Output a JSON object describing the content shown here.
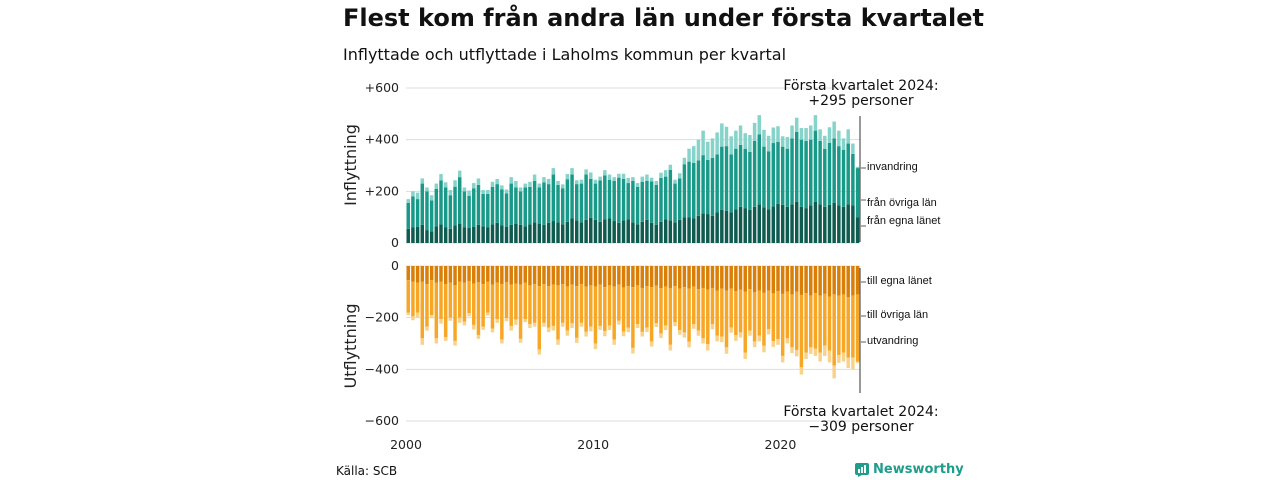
{
  "header": {
    "title": "Flest kom från andra län under första kvartalet",
    "subtitle": "Inflyttade och utflyttade i Laholms kommun per kvartal"
  },
  "footer": {
    "source": "Källa: SCB",
    "brand": "Newsworthy"
  },
  "colors": {
    "in_own": "#0f5b50",
    "in_other": "#199a88",
    "in_abroad": "#86d3c9",
    "out_own": "#d97e07",
    "out_other": "#f7a625",
    "out_abroad": "#f9d28a",
    "grid": "#dddddd"
  },
  "chart_data": [
    {
      "type": "bar",
      "stacked": true,
      "ylabel": "Inflyttning",
      "ylim": [
        0,
        600
      ],
      "yticks": [
        0,
        200,
        400,
        600
      ],
      "ytick_labels": [
        "0",
        "+200",
        "+400",
        "+600"
      ],
      "x_start": 2000,
      "x_end": 2024,
      "period": "quarter",
      "xtick_labels": [
        "2000",
        "2010",
        "2020"
      ],
      "legend": [
        "invandring",
        "från övriga län",
        "från egna länet"
      ],
      "annotation": {
        "line1": "Första kvartalet 2024:",
        "line2": "+295 personer"
      },
      "series": [
        {
          "name": "från egna länet",
          "values": [
            55,
            60,
            62,
            70,
            50,
            45,
            65,
            72,
            60,
            55,
            68,
            75,
            60,
            58,
            62,
            70,
            65,
            60,
            72,
            78,
            68,
            62,
            70,
            75,
            70,
            65,
            72,
            80,
            75,
            70,
            78,
            85,
            80,
            72,
            82,
            95,
            88,
            80,
            90,
            98,
            90,
            82,
            92,
            95,
            85,
            78,
            88,
            92,
            80,
            72,
            82,
            90,
            78,
            70,
            82,
            92,
            88,
            80,
            90,
            100,
            100,
            95,
            105,
            115,
            112,
            105,
            118,
            128,
            125,
            118,
            130,
            140,
            135,
            128,
            140,
            150,
            138,
            130,
            142,
            152,
            148,
            140,
            150,
            160,
            140,
            135,
            145,
            160,
            150,
            140,
            148,
            155,
            145,
            140,
            150,
            145,
            100
          ]
        },
        {
          "name": "från övriga län",
          "values": [
            100,
            120,
            108,
            160,
            150,
            120,
            145,
            170,
            155,
            130,
            150,
            180,
            140,
            125,
            150,
            155,
            125,
            130,
            145,
            150,
            140,
            130,
            160,
            140,
            130,
            150,
            145,
            160,
            140,
            165,
            150,
            180,
            145,
            140,
            165,
            170,
            140,
            150,
            175,
            150,
            140,
            160,
            170,
            150,
            155,
            175,
            160,
            140,
            160,
            145,
            155,
            150,
            160,
            155,
            170,
            165,
            195,
            150,
            160,
            205,
            215,
            215,
            215,
            225,
            210,
            225,
            225,
            245,
            250,
            225,
            235,
            240,
            230,
            225,
            255,
            270,
            235,
            225,
            245,
            240,
            225,
            225,
            255,
            270,
            260,
            260,
            255,
            275,
            245,
            225,
            240,
            250,
            230,
            220,
            235,
            200,
            190
          ]
        },
        {
          "name": "invandring",
          "values": [
            15,
            20,
            25,
            20,
            15,
            20,
            20,
            25,
            20,
            20,
            25,
            25,
            15,
            20,
            20,
            25,
            15,
            15,
            20,
            20,
            15,
            15,
            25,
            25,
            15,
            15,
            20,
            25,
            15,
            20,
            20,
            25,
            15,
            15,
            20,
            25,
            15,
            15,
            20,
            25,
            15,
            15,
            20,
            20,
            15,
            15,
            20,
            20,
            15,
            15,
            20,
            25,
            15,
            15,
            20,
            25,
            20,
            15,
            20,
            25,
            50,
            65,
            80,
            95,
            70,
            75,
            85,
            90,
            75,
            70,
            70,
            75,
            60,
            65,
            70,
            75,
            65,
            60,
            60,
            60,
            40,
            45,
            50,
            55,
            45,
            50,
            55,
            60,
            45,
            50,
            60,
            65,
            60,
            45,
            55,
            40,
            5
          ]
        }
      ]
    },
    {
      "type": "bar",
      "stacked": true,
      "ylabel": "Utflyttning",
      "ylim": [
        -600,
        0
      ],
      "yticks": [
        0,
        -200,
        -400,
        -600
      ],
      "ytick_labels": [
        "0",
        "−200",
        "−400",
        "−600"
      ],
      "x_start": 2000,
      "x_end": 2024,
      "period": "quarter",
      "xtick_labels": [
        "2000",
        "2010",
        "2020"
      ],
      "legend": [
        "till egna länet",
        "till övriga län",
        "utvandring"
      ],
      "annotation": {
        "line1": "Första kvartalet 2024:",
        "line2": "−309 personer"
      },
      "series": [
        {
          "name": "till egna länet",
          "values": [
            -55,
            -60,
            -65,
            -60,
            -70,
            -55,
            -65,
            -60,
            -70,
            -65,
            -75,
            -60,
            -65,
            -58,
            -68,
            -62,
            -70,
            -60,
            -72,
            -65,
            -70,
            -62,
            -72,
            -68,
            -72,
            -65,
            -75,
            -70,
            -78,
            -70,
            -78,
            -72,
            -75,
            -70,
            -80,
            -72,
            -78,
            -70,
            -80,
            -75,
            -80,
            -72,
            -82,
            -75,
            -80,
            -72,
            -84,
            -78,
            -82,
            -75,
            -85,
            -78,
            -82,
            -76,
            -86,
            -80,
            -85,
            -78,
            -88,
            -82,
            -88,
            -80,
            -90,
            -85,
            -92,
            -85,
            -95,
            -88,
            -95,
            -88,
            -98,
            -92,
            -100,
            -90,
            -102,
            -95,
            -104,
            -95,
            -106,
            -98,
            -108,
            -100,
            -110,
            -100,
            -112,
            -105,
            -115,
            -105,
            -115,
            -108,
            -118,
            -110,
            -115,
            -110,
            -120,
            -115,
            -110
          ]
        },
        {
          "name": "till övriga län",
          "values": [
            -125,
            -135,
            -115,
            -220,
            -165,
            -135,
            -215,
            -145,
            -205,
            -135,
            -215,
            -140,
            -150,
            -125,
            -160,
            -205,
            -165,
            -120,
            -170,
            -140,
            -215,
            -140,
            -160,
            -140,
            -210,
            -140,
            -150,
            -150,
            -245,
            -150,
            -160,
            -160,
            -210,
            -150,
            -170,
            -150,
            -200,
            -150,
            -175,
            -160,
            -220,
            -160,
            -170,
            -155,
            -205,
            -140,
            -170,
            -160,
            -235,
            -150,
            -170,
            -160,
            -210,
            -145,
            -175,
            -150,
            -220,
            -140,
            -160,
            -175,
            -205,
            -145,
            -160,
            -195,
            -210,
            -140,
            -175,
            -185,
            -220,
            -150,
            -170,
            -165,
            -235,
            -160,
            -190,
            -175,
            -205,
            -150,
            -185,
            -185,
            -240,
            -180,
            -205,
            -225,
            -280,
            -230,
            -200,
            -215,
            -220,
            -200,
            -210,
            -275,
            -230,
            -225,
            -235,
            -240,
            -260
          ]
        },
        {
          "name": "utvandring",
          "values": [
            -10,
            -15,
            -20,
            -25,
            -15,
            -12,
            -20,
            -18,
            -15,
            -12,
            -18,
            -20,
            -15,
            -12,
            -18,
            -15,
            -12,
            -12,
            -15,
            -15,
            -15,
            -12,
            -18,
            -20,
            -15,
            -12,
            -15,
            -15,
            -20,
            -15,
            -18,
            -18,
            -20,
            -15,
            -20,
            -18,
            -20,
            -15,
            -18,
            -18,
            -22,
            -15,
            -20,
            -18,
            -20,
            -15,
            -18,
            -18,
            -22,
            -15,
            -18,
            -18,
            -20,
            -15,
            -18,
            -18,
            -22,
            -15,
            -18,
            -20,
            -22,
            -18,
            -20,
            -20,
            -25,
            -20,
            -22,
            -22,
            -25,
            -20,
            -22,
            -20,
            -25,
            -20,
            -22,
            -22,
            -25,
            -20,
            -22,
            -22,
            -25,
            -20,
            -22,
            -25,
            -28,
            -25,
            -25,
            -28,
            -35,
            -40,
            -45,
            -50,
            -30,
            -35,
            -40,
            -45,
            -5
          ]
        }
      ]
    }
  ]
}
